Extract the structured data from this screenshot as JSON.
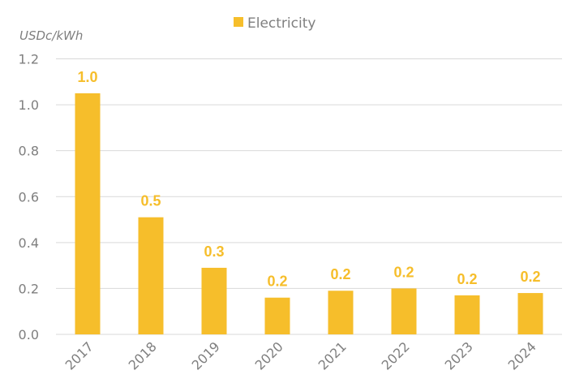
{
  "chart_data": {
    "type": "bar",
    "title": "",
    "xlabel": "",
    "ylabel": "USDc/kWh",
    "categories": [
      "2017",
      "2018",
      "2019",
      "2020",
      "2021",
      "2022",
      "2023",
      "2024"
    ],
    "series": [
      {
        "name": "Electricity",
        "color": "#F6BE2B",
        "values": [
          1.05,
          0.51,
          0.29,
          0.16,
          0.19,
          0.2,
          0.17,
          0.18
        ],
        "data_labels": [
          "1.0",
          "0.5",
          "0.3",
          "0.2",
          "0.2",
          "0.2",
          "0.2",
          "0.2"
        ]
      }
    ],
    "ylim": [
      0,
      1.2
    ],
    "yticks": [
      0.0,
      0.2,
      0.4,
      0.6,
      0.8,
      1.0,
      1.2
    ],
    "ytick_labels": [
      "0.0",
      "0.2",
      "0.4",
      "0.6",
      "0.8",
      "1.0",
      "1.2"
    ],
    "grid": true,
    "legend_position": "top-center",
    "xtick_rotation": -45,
    "colors": {
      "text": "#7f7f7f",
      "grid": "#d9d9d9",
      "label": "#F6BE2B"
    }
  }
}
